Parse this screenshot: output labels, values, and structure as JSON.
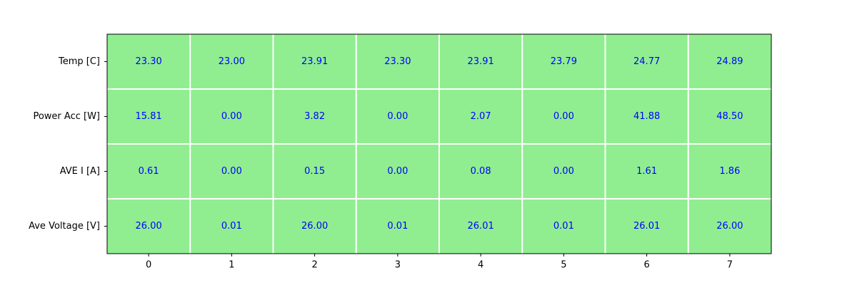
{
  "chart_data": {
    "type": "heatmap",
    "title": "",
    "xlabel": "",
    "ylabel": "",
    "x_ticks": [
      "0",
      "1",
      "2",
      "3",
      "4",
      "5",
      "6",
      "7"
    ],
    "row_labels": [
      "Temp [C]",
      "Power Acc [W]",
      "AVE I [A]",
      "Ave Voltage [V]"
    ],
    "values": [
      [
        "23.30",
        "23.00",
        "23.91",
        "23.30",
        "23.91",
        "23.79",
        "24.77",
        "24.89"
      ],
      [
        "15.81",
        "0.00",
        "3.82",
        "0.00",
        "2.07",
        "0.00",
        "41.88",
        "48.50"
      ],
      [
        "0.61",
        "0.00",
        "0.15",
        "0.00",
        "0.08",
        "0.00",
        "1.61",
        "1.86"
      ],
      [
        "26.00",
        "0.01",
        "26.00",
        "0.01",
        "26.01",
        "0.01",
        "26.01",
        "26.00"
      ]
    ],
    "cell_color": "#90ee90",
    "text_color": "#0000ff",
    "grid_color": "#ffffff",
    "axis_color": "#000000",
    "grid": true
  }
}
